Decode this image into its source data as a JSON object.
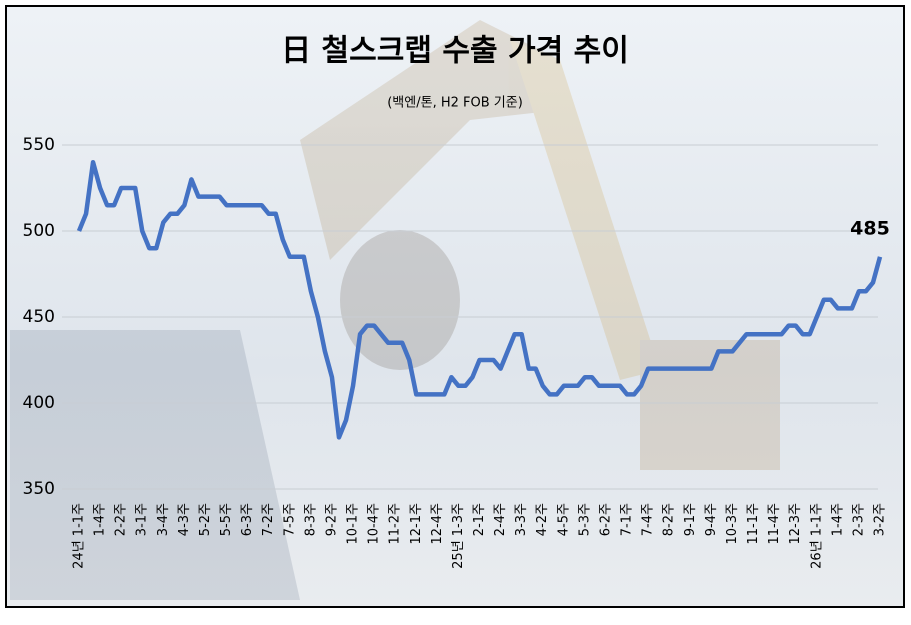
{
  "chart_data": {
    "type": "line",
    "title": "日 철스크랩 수출 가격 추이",
    "subtitle": "(백엔/톤, H2 FOB 기준)",
    "categories": [
      "24년 1-1주",
      null,
      null,
      "1-4주",
      null,
      null,
      "2-2주",
      null,
      null,
      "3-1주",
      null,
      null,
      "3-4주",
      null,
      null,
      "4-3주",
      null,
      null,
      "5-2주",
      null,
      null,
      "5-5주",
      null,
      null,
      "6-3주",
      null,
      null,
      "7-2주",
      null,
      null,
      "7-5주",
      null,
      null,
      "8-3주",
      null,
      null,
      "9-2주",
      null,
      null,
      "10-1주",
      null,
      null,
      "10-4주",
      null,
      null,
      "11-2주",
      null,
      null,
      "12-1주",
      null,
      null,
      "12-4주",
      null,
      null,
      "25년 1-3주",
      null,
      null,
      "2-1주",
      null,
      null,
      "2-4주",
      null,
      null,
      "3-3주",
      null,
      null,
      "4-2주",
      null,
      null,
      "4-5주",
      null,
      null,
      "5-3주",
      null,
      null,
      "6-2주",
      null,
      null,
      "7-1주",
      null,
      null,
      "7-4주",
      null,
      null,
      "8-2주",
      null,
      null,
      "9-1주",
      null,
      null,
      "9-4주",
      null,
      null,
      "10-3주",
      null,
      null,
      "11-1주",
      null,
      null,
      "11-4주",
      null,
      null,
      "12-3주",
      null,
      null,
      "26년 1-1주",
      null,
      null,
      "1-4주",
      null,
      null,
      "2-3주",
      null,
      null,
      "3-2주"
    ],
    "series": [
      {
        "color": "#4472c4",
        "values": [
          500,
          510,
          540,
          525,
          515,
          515,
          525,
          525,
          525,
          500,
          490,
          490,
          505,
          510,
          510,
          515,
          530,
          520,
          520,
          520,
          520,
          515,
          515,
          515,
          515,
          515,
          515,
          510,
          510,
          495,
          485,
          485,
          485,
          465,
          450,
          430,
          415,
          380,
          390,
          410,
          440,
          445,
          445,
          440,
          435,
          435,
          435,
          425,
          405,
          405,
          405,
          405,
          405,
          415,
          410,
          410,
          415,
          425,
          425,
          425,
          420,
          430,
          440,
          440,
          420,
          420,
          410,
          405,
          405,
          410,
          410,
          410,
          415,
          415,
          410,
          410,
          410,
          410,
          405,
          405,
          410,
          420,
          420,
          420,
          420,
          420,
          420,
          420,
          420,
          420,
          420,
          430,
          430,
          430,
          435,
          440,
          440,
          440,
          440,
          440,
          440,
          445,
          445,
          440,
          440,
          450,
          460,
          460,
          455,
          455,
          455,
          465,
          465,
          470,
          485
        ]
      }
    ],
    "end_label_index": 114,
    "ylim": [
      350,
      550
    ],
    "yticks": [
      350,
      400,
      450,
      500,
      550
    ],
    "grid": true
  }
}
